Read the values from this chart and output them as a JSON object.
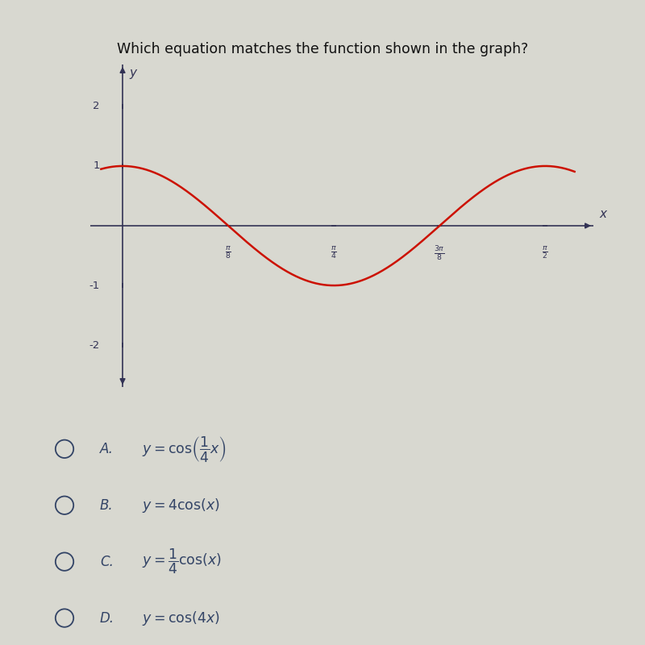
{
  "title": "Which equation matches the function shown in the graph?",
  "title_fontsize": 12.5,
  "curve_color": "#cc1100",
  "curve_linewidth": 1.8,
  "axis_color": "#333355",
  "background_color": "#d8d8d0",
  "ylim": [
    -2.7,
    2.7
  ],
  "xlim": [
    -0.12,
    1.75
  ],
  "ytick_vals": [
    -2,
    -1,
    1,
    2
  ],
  "xtick_positions": [
    0.3927,
    0.7854,
    1.1781,
    1.5708
  ],
  "xtick_labels": [
    "\\frac{\\pi}{8}",
    "\\frac{\\pi}{4}",
    "\\frac{3\\pi}{8}",
    "\\frac{\\pi}{2}"
  ],
  "choice_labels": [
    "A.",
    "B.",
    "C.",
    "D."
  ],
  "choice_equations": [
    "$y = \\cos\\!\\left(\\dfrac{1}{4}x\\right)$",
    "$y = 4\\cos(x)$",
    "$y = \\dfrac{1}{4}\\cos(x)$",
    "$y = \\cos(4x)$"
  ],
  "choice_fontsize": 12,
  "label_fontsize": 11,
  "radio_color": "#334466",
  "tick_fontsize": 9.5,
  "ytick_label_x": -0.085,
  "xtick_label_y_offset": -0.32
}
